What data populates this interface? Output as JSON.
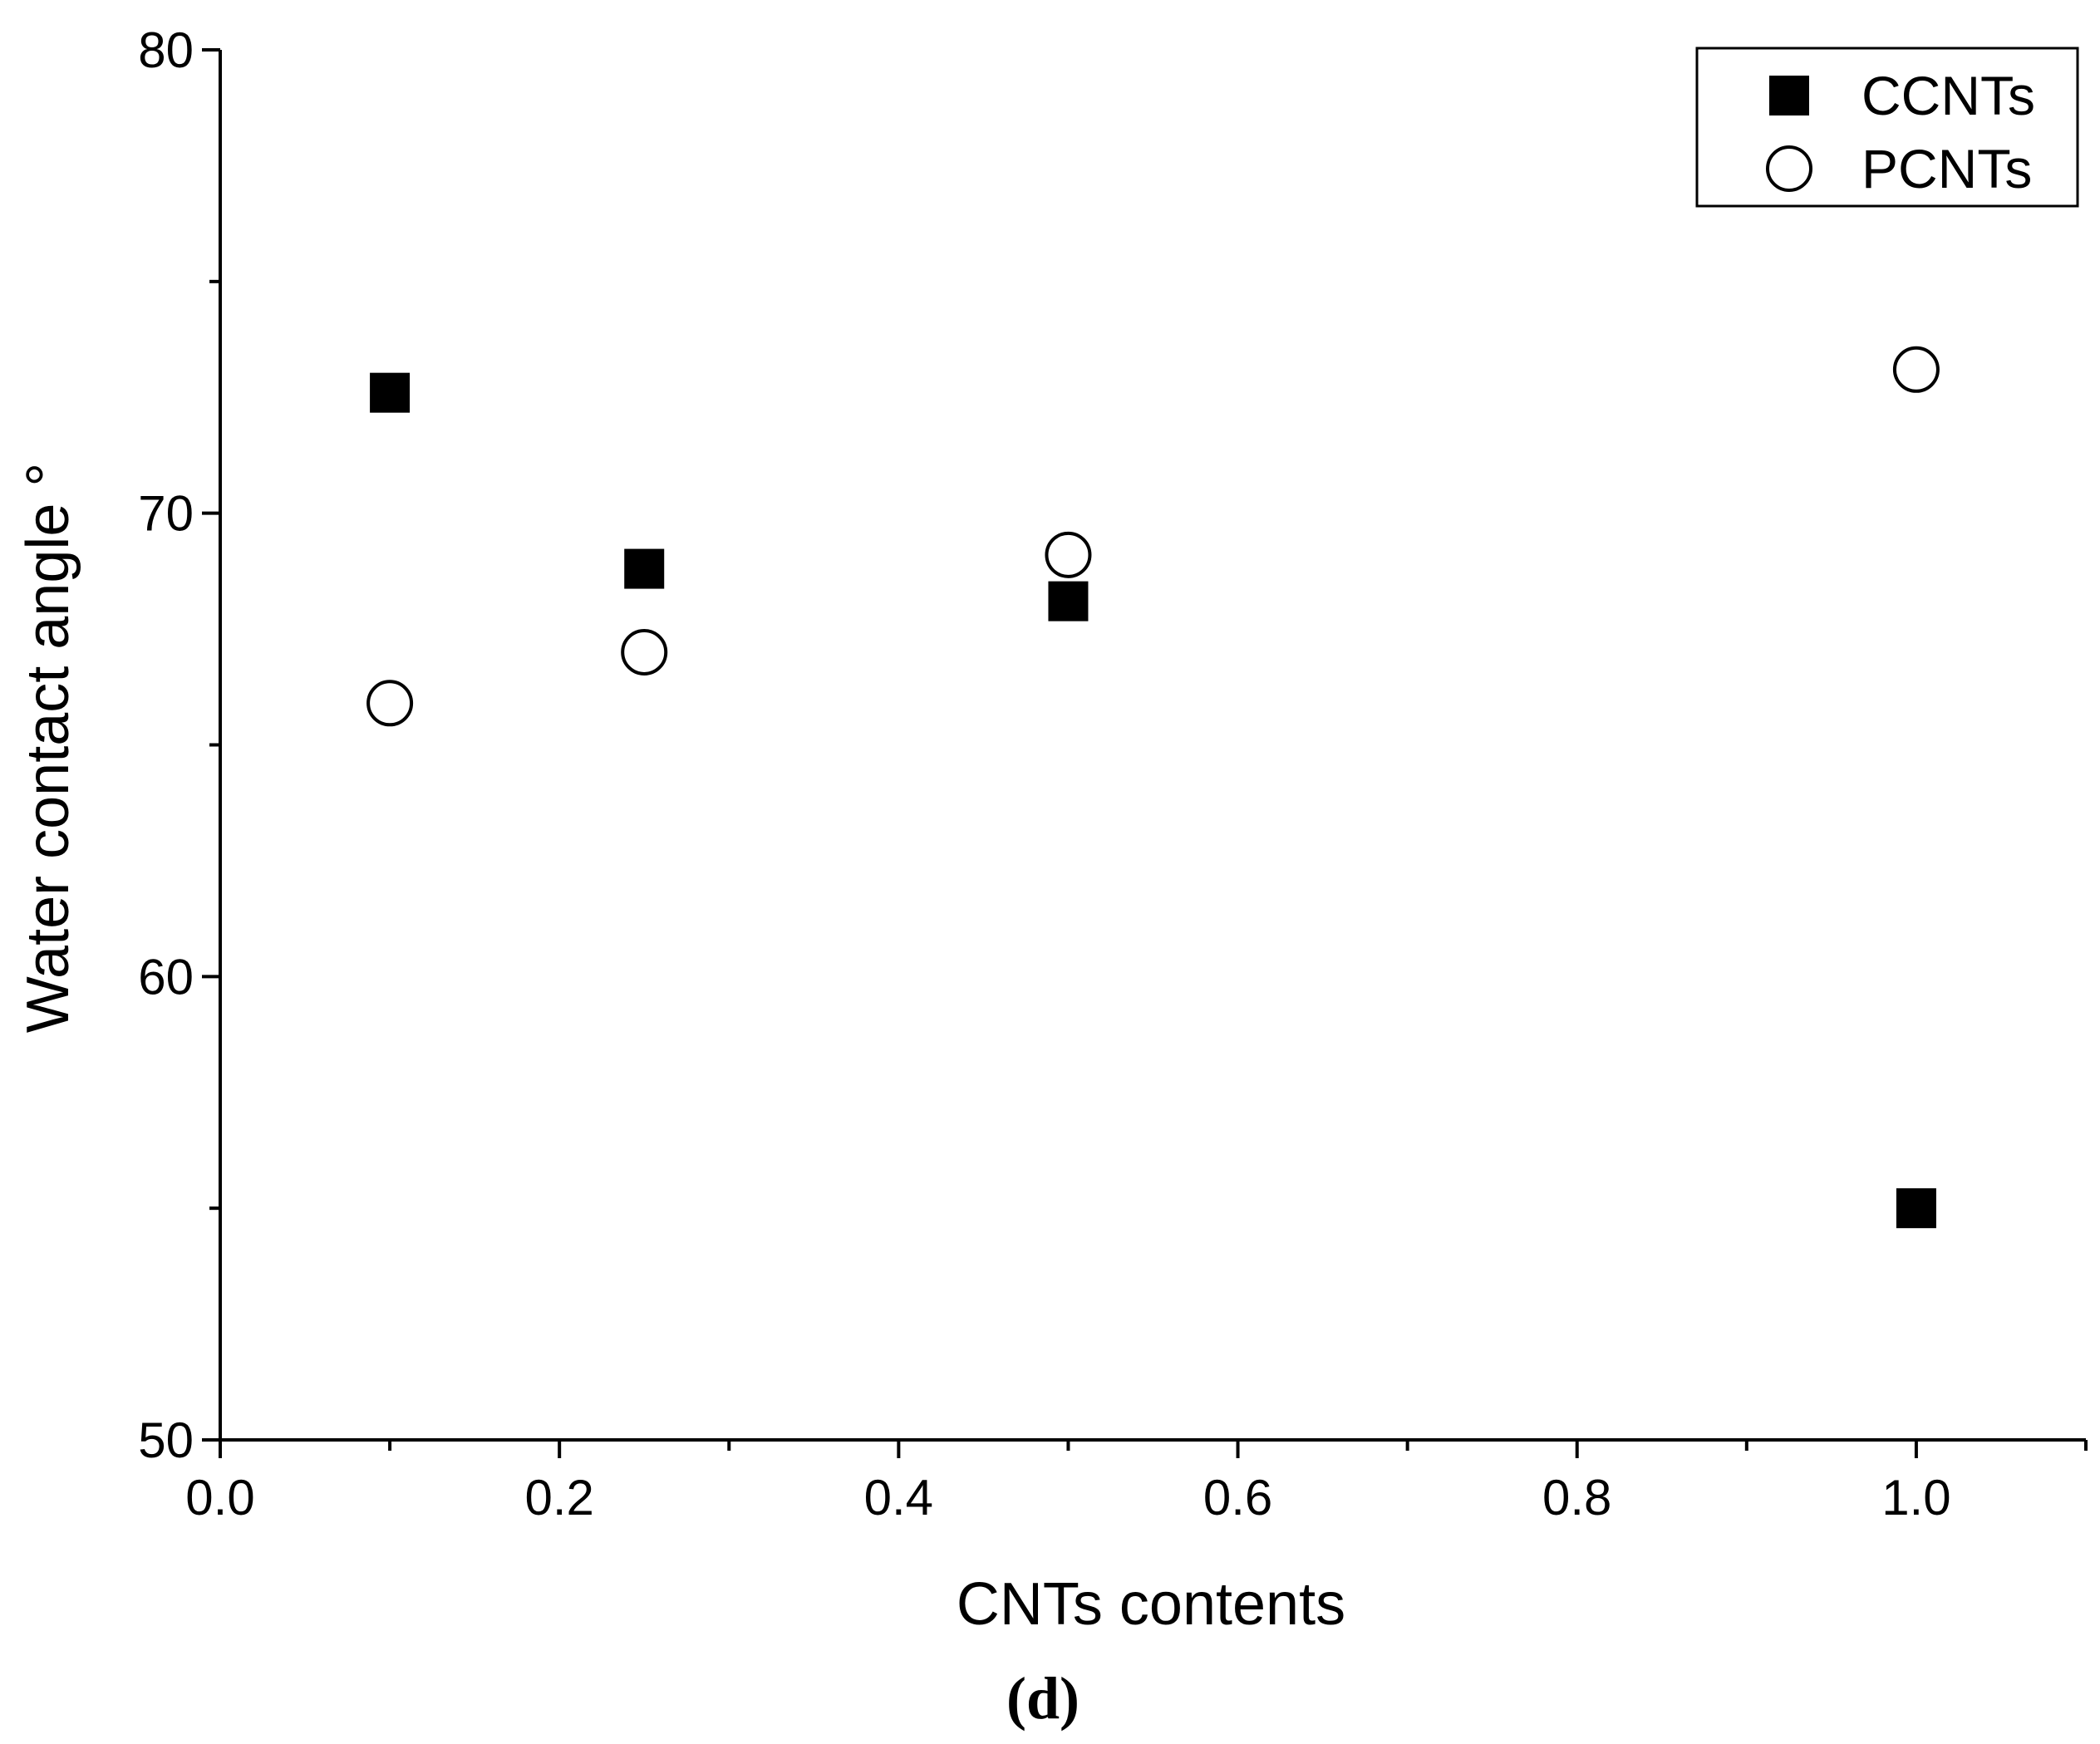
{
  "chart_data": {
    "type": "scatter",
    "xlabel": "CNTs contents",
    "ylabel": "Water contact angle °",
    "xlim": [
      0.0,
      1.1
    ],
    "ylim": [
      50,
      80
    ],
    "x_ticks": [
      "0.0",
      "0.2",
      "0.4",
      "0.6",
      "0.8",
      "1.0"
    ],
    "y_ticks": [
      "50",
      "60",
      "70",
      "80"
    ],
    "grid": false,
    "legend_position": "top-right",
    "series": [
      {
        "name": "CCNTs",
        "marker": "filled-square",
        "color": "#000000",
        "points": [
          {
            "x": 0.1,
            "y": 72.6
          },
          {
            "x": 0.25,
            "y": 68.8
          },
          {
            "x": 0.5,
            "y": 68.1
          },
          {
            "x": 1.0,
            "y": 55.0
          }
        ]
      },
      {
        "name": "PCNTs",
        "marker": "open-circle",
        "color": "#000000",
        "points": [
          {
            "x": 0.1,
            "y": 65.9
          },
          {
            "x": 0.25,
            "y": 67.0
          },
          {
            "x": 0.5,
            "y": 69.1
          },
          {
            "x": 1.0,
            "y": 73.1
          }
        ]
      }
    ]
  },
  "panel_label": "(d)"
}
